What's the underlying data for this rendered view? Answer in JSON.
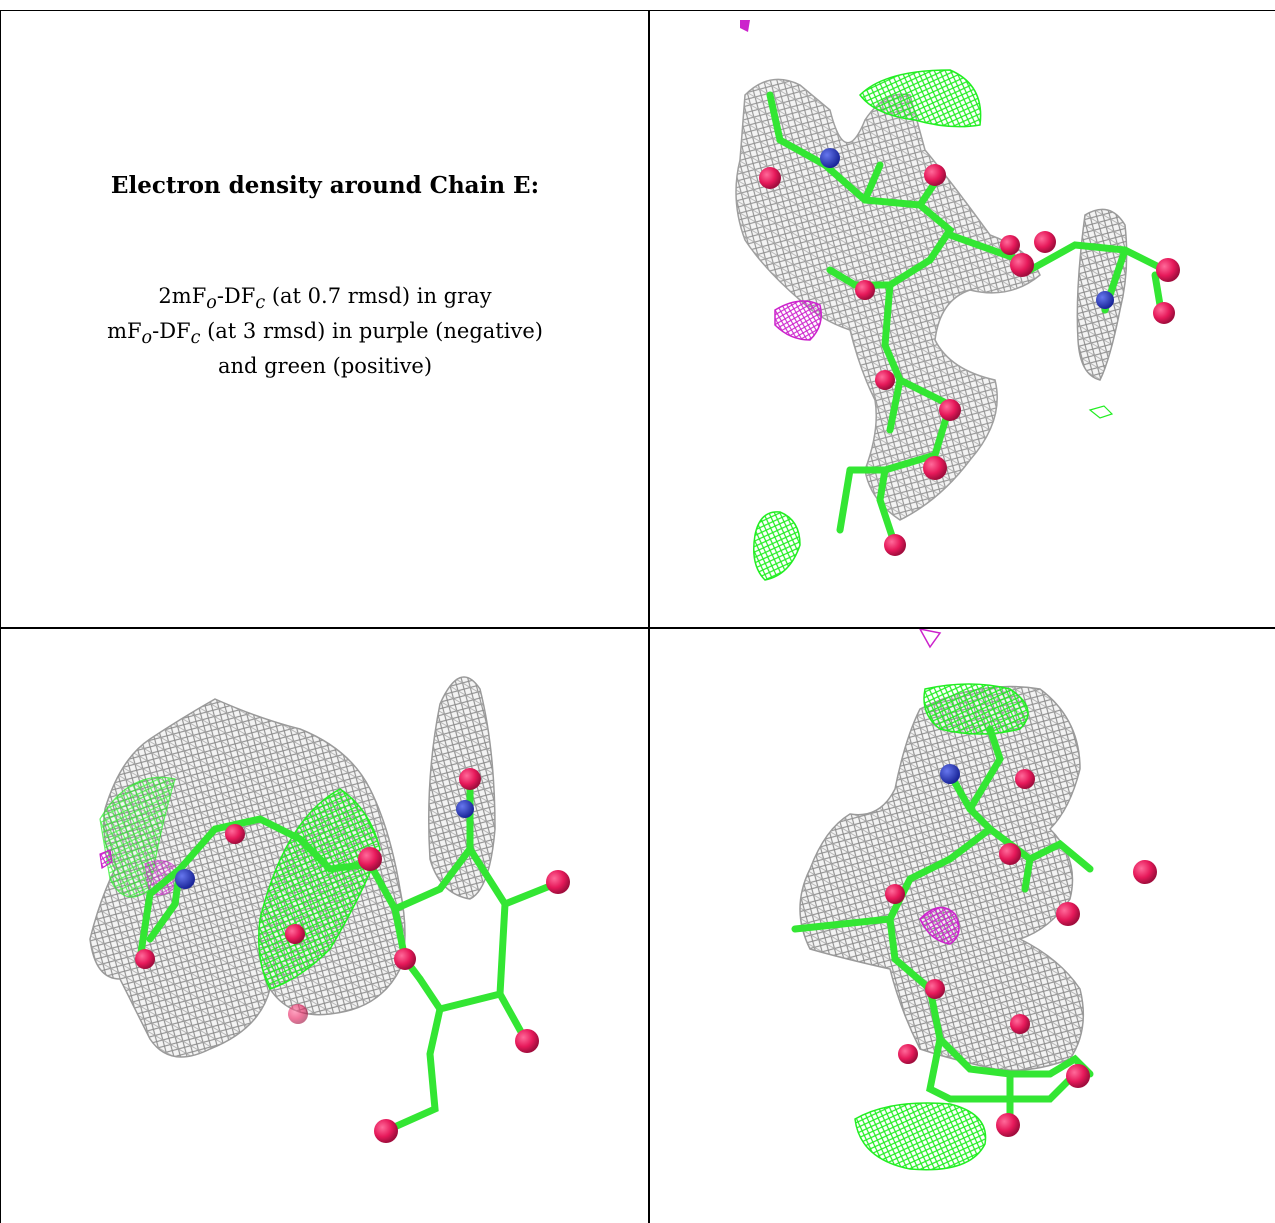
{
  "caption": {
    "heading": "Electron density around Chain E:",
    "line1": {
      "pre": "2mF",
      "sub1": "o",
      "mid": "-DF",
      "sub2": "c",
      "post": " (at 0.7 rmsd) in gray"
    },
    "line2": {
      "pre": "mF",
      "sub1": "o",
      "mid": "-DF",
      "sub2": "c",
      "post": " (at 3 rmsd) in purple (negative)"
    },
    "line3": "and green (positive)"
  },
  "colors": {
    "mesh_gray": "#8c8c8c",
    "bond_green": "#33e633",
    "positive_green": "#22ee22",
    "negative_purple": "#cc22cc",
    "oxygen": "#e6195a",
    "nitrogen": "#2233cc",
    "border": "#000000"
  },
  "panels": [
    {
      "name": "view-top-right",
      "icon": "molecule-density-render"
    },
    {
      "name": "view-bottom-left",
      "icon": "molecule-density-render"
    },
    {
      "name": "view-bottom-right",
      "icon": "molecule-density-render"
    }
  ]
}
